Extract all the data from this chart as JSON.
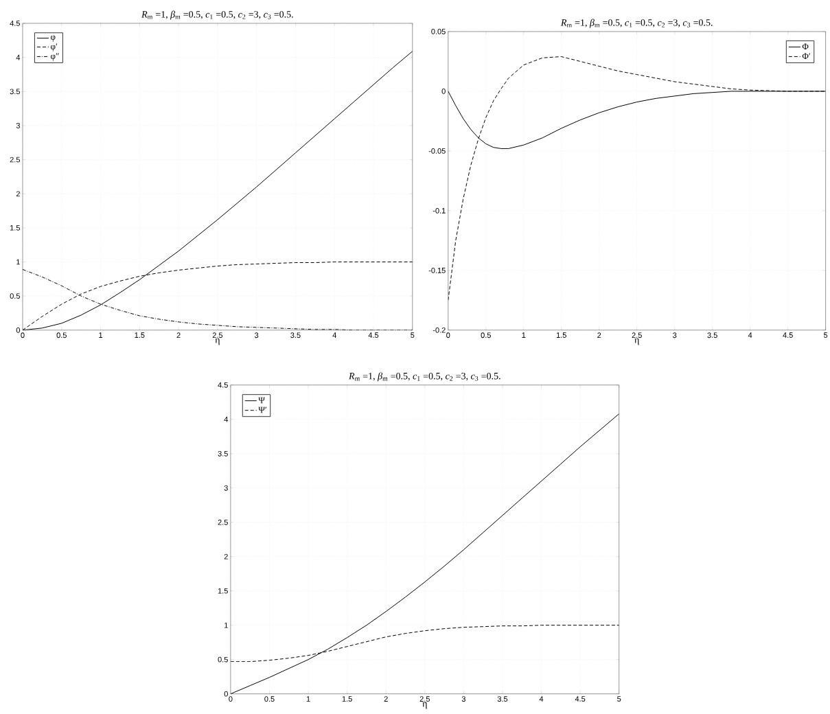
{
  "chart_data": [
    {
      "type": "line",
      "title": "*R*$_{m}$ =1, *β*$_{m}$ =0.5, *c*$_{1}$ =0.5, *c*$_{2}$ =3, *c*$_{3}$ =0.5.",
      "xlabel": "η",
      "x": [
        0,
        0.25,
        0.5,
        0.75,
        1,
        1.25,
        1.5,
        1.75,
        2,
        2.25,
        2.5,
        2.75,
        3,
        3.25,
        3.5,
        3.75,
        4,
        4.25,
        4.5,
        4.75,
        5
      ],
      "series": [
        {
          "name": "φ",
          "color": "#000000",
          "line_style": "solid",
          "values": [
            0,
            0.03,
            0.1,
            0.22,
            0.37,
            0.55,
            0.74,
            0.95,
            1.16,
            1.39,
            1.62,
            1.86,
            2.1,
            2.35,
            2.6,
            2.85,
            3.1,
            3.35,
            3.6,
            3.85,
            4.09
          ]
        },
        {
          "name": "φ′",
          "color": "#000000",
          "line_style": "dashed",
          "values": [
            0,
            0.2,
            0.38,
            0.53,
            0.64,
            0.72,
            0.79,
            0.84,
            0.88,
            0.91,
            0.94,
            0.96,
            0.97,
            0.98,
            0.99,
            0.99,
            1.0,
            1.0,
            1.0,
            1.0,
            1.0
          ]
        },
        {
          "name": "φ″",
          "color": "#000000",
          "line_style": "dashdot",
          "values": [
            0.89,
            0.78,
            0.65,
            0.5,
            0.38,
            0.29,
            0.21,
            0.16,
            0.12,
            0.09,
            0.07,
            0.05,
            0.04,
            0.03,
            0.02,
            0.01,
            0.01,
            0,
            0,
            0,
            0
          ]
        }
      ],
      "xlim": [
        0,
        5
      ],
      "xticks": [
        0,
        0.5,
        1,
        1.5,
        2,
        2.5,
        3,
        3.5,
        4,
        4.5,
        5
      ],
      "ylim": [
        0,
        4.5
      ],
      "yticks": [
        0,
        0.5,
        1,
        1.5,
        2,
        2.5,
        3,
        3.5,
        4,
        4.5
      ],
      "grid": true,
      "legend": "top left",
      "marker": "none"
    },
    {
      "type": "line",
      "title": "*R*$_{m}$ =1, *β*$_{m}$ =0.5, *c*$_{1}$ =0.5, *c*$_{2}$ =3, *c*$_{3}$ =0.5.",
      "xlabel": "η",
      "x": [
        0,
        0.1,
        0.2,
        0.3,
        0.4,
        0.5,
        0.6,
        0.7,
        0.8,
        1,
        1.25,
        1.5,
        1.75,
        2,
        2.25,
        2.5,
        2.75,
        3,
        3.25,
        3.5,
        3.75,
        4,
        4.5,
        5
      ],
      "series": [
        {
          "name": "Φ",
          "color": "#000000",
          "line_style": "solid",
          "values": [
            0,
            -0.012,
            -0.023,
            -0.032,
            -0.039,
            -0.044,
            -0.047,
            -0.048,
            -0.048,
            -0.045,
            -0.039,
            -0.031,
            -0.024,
            -0.018,
            -0.013,
            -0.009,
            -0.006,
            -0.004,
            -0.002,
            -0.001,
            0,
            0,
            0,
            0
          ]
        },
        {
          "name": "Φ′",
          "color": "#000000",
          "line_style": "dashed",
          "values": [
            -0.175,
            -0.125,
            -0.09,
            -0.062,
            -0.04,
            -0.022,
            -0.008,
            0.002,
            0.011,
            0.022,
            0.028,
            0.029,
            0.025,
            0.021,
            0.017,
            0.014,
            0.011,
            0.008,
            0.006,
            0.004,
            0.002,
            0.001,
            0,
            0
          ]
        }
      ],
      "xlim": [
        0,
        5
      ],
      "xticks": [
        0,
        0.5,
        1,
        1.5,
        2,
        2.5,
        3,
        3.5,
        4,
        4.5,
        5
      ],
      "ylim": [
        -0.2,
        0.05
      ],
      "yticks": [
        -0.2,
        -0.15,
        -0.1,
        -0.05,
        0,
        0.05
      ],
      "grid": true,
      "legend": "top right",
      "marker": "none"
    },
    {
      "type": "line",
      "title": "*R*$_{m}$ =1, *β*$_{m}$ =0.5, *c*$_{1}$ =0.5, *c*$_{2}$ =3, *c*$_{3}$ =0.5.",
      "xlabel": "η",
      "x": [
        0,
        0.25,
        0.5,
        0.75,
        1,
        1.25,
        1.5,
        1.75,
        2,
        2.25,
        2.5,
        2.75,
        3,
        3.25,
        3.5,
        3.75,
        4,
        4.25,
        4.5,
        4.75,
        5
      ],
      "series": [
        {
          "name": "Ψ",
          "color": "#000000",
          "line_style": "solid",
          "values": [
            0,
            0.12,
            0.24,
            0.37,
            0.5,
            0.65,
            0.82,
            1.0,
            1.2,
            1.41,
            1.63,
            1.86,
            2.1,
            2.35,
            2.6,
            2.85,
            3.1,
            3.35,
            3.6,
            3.84,
            4.08
          ]
        },
        {
          "name": "Ψ′",
          "color": "#000000",
          "line_style": "dashed",
          "values": [
            0.47,
            0.47,
            0.49,
            0.52,
            0.56,
            0.62,
            0.69,
            0.76,
            0.83,
            0.88,
            0.92,
            0.95,
            0.97,
            0.98,
            0.99,
            0.99,
            1.0,
            1.0,
            1.0,
            1.0,
            1.0
          ]
        }
      ],
      "xlim": [
        0,
        5
      ],
      "xticks": [
        0,
        0.5,
        1,
        1.5,
        2,
        2.5,
        3,
        3.5,
        4,
        4.5,
        5
      ],
      "ylim": [
        0,
        4.5
      ],
      "yticks": [
        0,
        0.5,
        1,
        1.5,
        2,
        2.5,
        3,
        3.5,
        4,
        4.5
      ],
      "grid": true,
      "legend": "top left",
      "marker": "none"
    }
  ]
}
